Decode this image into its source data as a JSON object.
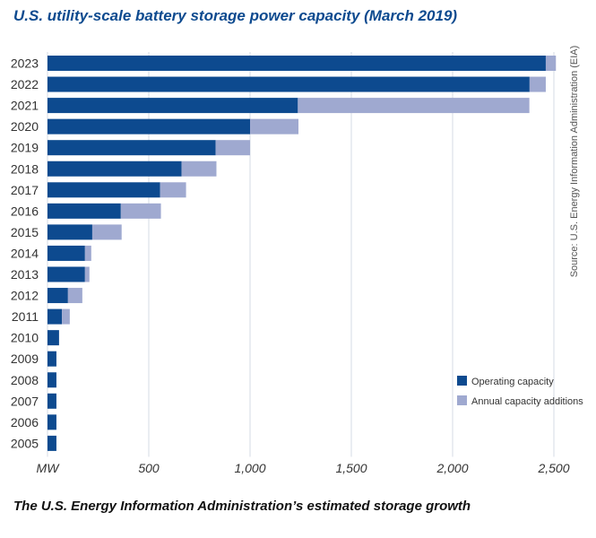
{
  "title": "U.S. utility-scale battery storage power capacity (March 2019)",
  "caption": "The U.S. Energy Information Administration’s estimated storage growth",
  "source": "Source: U.S. Energy Information Administration (EIA)",
  "colors": {
    "operating": "#0d4a8f",
    "additions": "#9fa9d0",
    "grid": "#d6dbe6"
  },
  "chart_data": {
    "type": "bar",
    "orientation": "horizontal",
    "stacked": true,
    "title": "U.S. utility-scale battery storage power capacity (March 2019)",
    "xlabel": "MW",
    "xlim": [
      0,
      2600
    ],
    "xticks": [
      500,
      1000,
      1500,
      2000,
      2500
    ],
    "xtick_labels": [
      "500",
      "1,000",
      "1,500",
      "2,000",
      "2,500"
    ],
    "legend_position": "bottom-right",
    "categories": [
      "2023",
      "2022",
      "2021",
      "2020",
      "2019",
      "2018",
      "2017",
      "2016",
      "2015",
      "2014",
      "2013",
      "2012",
      "2011",
      "2010",
      "2009",
      "2008",
      "2007",
      "2006",
      "2005"
    ],
    "series": [
      {
        "name": "Operating capacity",
        "values": [
          2460,
          2380,
          1236,
          1000,
          830,
          662,
          556,
          362,
          221,
          185,
          185,
          101,
          71,
          57,
          44,
          44,
          44,
          44,
          44
        ]
      },
      {
        "name": "Annual capacity additions",
        "values": [
          50,
          80,
          1143,
          239,
          170,
          172,
          128,
          198,
          145,
          31,
          22,
          71,
          39,
          0,
          0,
          0,
          0,
          0,
          0
        ]
      }
    ]
  }
}
